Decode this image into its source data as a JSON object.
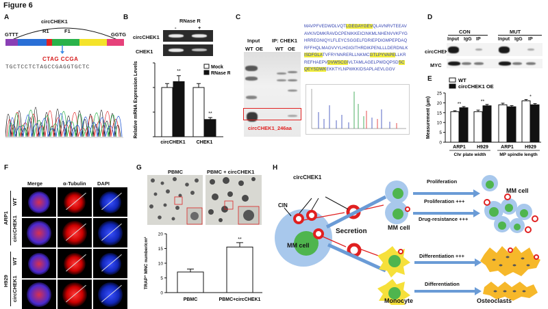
{
  "figure_title": "Figure 6",
  "panels": {
    "A": {
      "label": "A",
      "circ_label": "circCHEK1",
      "primer_r1": "R1",
      "primer_f1": "F1",
      "left_seq": "GTTT",
      "right_seq": "GGTG",
      "junction_seq": "CTAG CCGA",
      "chromatogram_seq": "TGCTCCTCTAGCCGAGGTGCTC",
      "exon_colors": [
        "#8a3fb5",
        "#2a6fd6",
        "#e02424",
        "#2ab24a",
        "#f4e32a",
        "#e6417a"
      ]
    },
    "B": {
      "label": "B",
      "gel_title": "RNase R",
      "minus": "-",
      "plus": "+",
      "row1": "circCHEK1",
      "row2": "CHEK1",
      "ylabel": "Relative mRNA Expression Levels",
      "legend": [
        "Mock",
        "RNase R"
      ],
      "sig1": "**",
      "sig2": "**"
    },
    "C": {
      "label": "C",
      "input": "Input",
      "ip": "IP: CHEK1",
      "wt1": "WT",
      "oe1": "OE",
      "wt2": "WT",
      "oe2": "OE",
      "box_label": "circCHEK1_246aa",
      "sequence": [
        {
          "t": "MAVPFVEDWDLVQT"
        },
        {
          "t": "LGEGAYGEV",
          "h": true
        },
        {
          "t": "QLAVNRVTEEAV"
        },
        {
          "br": true
        },
        {
          "t": "AVKIVDMKRAVDCPENIKKEICINKMLNHENVVKFYG"
        },
        {
          "br": true
        },
        {
          "t": "HRREGNIQYLFLEYCSGGELFDRIEPDIGMPEPDAQ"
        },
        {
          "br": true
        },
        {
          "t": "RFFHQLMAGVVYLHGIGITHRDIKPENLLLDERDNLK"
        },
        {
          "br": true
        },
        {
          "t": "ISDFGLA",
          "h": true
        },
        {
          "t": "TVFRYNNRERLLNKMC"
        },
        {
          "t": "GTLPYVAPE",
          "h": true
        },
        {
          "t": "LLKR"
        },
        {
          "br": true
        },
        {
          "t": "REFHAEPV"
        },
        {
          "t": "DVWSCGI",
          "h": true
        },
        {
          "t": "VLTAMLAGELPWDQPSD"
        },
        {
          "t": "SC",
          "h": true
        },
        {
          "br": true
        },
        {
          "t": "QEYSDWK",
          "h": true
        },
        {
          "t": "EKKTYLNPWKKIDSAPLAEVLGGV"
        }
      ]
    },
    "D": {
      "label": "D",
      "con": "CON",
      "mut": "MUT",
      "cols": [
        "Input",
        "IgG",
        "IP",
        "Input",
        "IgG",
        "IP"
      ],
      "row1": "circCHEK1",
      "row2": "MYC"
    },
    "E": {
      "label": "E",
      "legend": [
        "WT",
        "circCHEK1 OE"
      ],
      "ylabel": "Measurement (μm)",
      "ticks": [
        "0",
        "5",
        "10",
        "15",
        "20",
        "25"
      ],
      "groups": [
        "ARP1",
        "H929",
        "ARP1",
        "H929"
      ],
      "group_labels": [
        "Chr plate width",
        "MP spindle length"
      ],
      "sig": [
        "**",
        "**",
        "*"
      ]
    },
    "F": {
      "label": "F",
      "cols": [
        "Merge",
        "α-Tubulin",
        "DAPI"
      ],
      "rows": [
        "WT",
        "circCHEK1",
        "WT",
        "circCHEK1"
      ],
      "groups": [
        "ARP1",
        "H929"
      ]
    },
    "G": {
      "label": "G",
      "img1": "PBMC",
      "img2": "PBMC + circCHEK1",
      "ylabel": "TRAP⁺ MNC number/cm²",
      "ticks": [
        "0",
        "5",
        "10",
        "15",
        "20"
      ],
      "cats": [
        "PBMC",
        "PBMC+circCHEK1"
      ],
      "sig": "**"
    },
    "H": {
      "label": "H",
      "circ": "circCHEK1",
      "cin": "CIN",
      "secretion": "Secretion",
      "mm_cell_left": "MM cell",
      "mm_cell_mid": "MM cell",
      "mm_cell_right": "MM cell",
      "monocyte": "Monocyte",
      "osteoclasts": "Osteoclasts",
      "proliferation": "Proliferation",
      "proliferation_plus": "Proliferation +++",
      "drug_resistance": "Drug-resistance +++",
      "differentiation_plus": "Differentiation +++",
      "differentiation": "Differentiation",
      "chek1": "CHEK1"
    }
  },
  "chart_data": [
    {
      "type": "bar",
      "panel": "B",
      "categories": [
        "circCHEK1",
        "CHEK1"
      ],
      "series": [
        {
          "name": "Mock",
          "values": [
            1.0,
            1.0
          ],
          "errors": [
            0.08,
            0.08
          ]
        },
        {
          "name": "RNase R",
          "values": [
            1.12,
            0.35
          ],
          "errors": [
            0.12,
            0.04
          ]
        }
      ],
      "ylim": [
        0,
        1.5
      ],
      "ylabel": "Relative mRNA Expression Levels"
    },
    {
      "type": "bar",
      "panel": "E",
      "categories": [
        "ARP1",
        "H929",
        "ARP1",
        "H929"
      ],
      "series": [
        {
          "name": "WT",
          "values": [
            15.5,
            15.5,
            19,
            21
          ],
          "errors": [
            0.5,
            0.8,
            0.8,
            0.7
          ]
        },
        {
          "name": "circCHEK1 OE",
          "values": [
            17.5,
            18.5,
            18,
            19
          ],
          "errors": [
            0.6,
            0.7,
            0.6,
            0.6
          ]
        }
      ],
      "ylim": [
        0,
        25
      ],
      "ylabel": "Measurement (μm)"
    },
    {
      "type": "bar",
      "panel": "G",
      "categories": [
        "PBMC",
        "PBMC+circCHEK1"
      ],
      "values": [
        7,
        15.5
      ],
      "errors": [
        1,
        1.5
      ],
      "ylim": [
        0,
        20
      ],
      "ylabel": "TRAP⁺ MNC number/cm²"
    }
  ]
}
